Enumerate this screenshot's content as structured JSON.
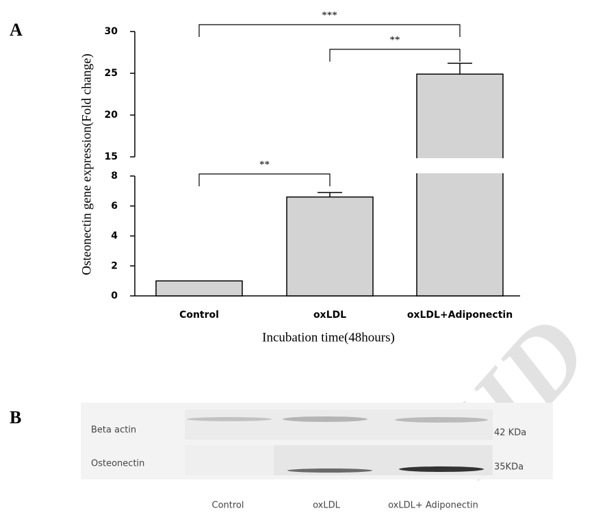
{
  "chart_data": {
    "type": "bar",
    "panel_label": "A",
    "y_label": "Osteonectin gene expression(Fold change)",
    "x_label": "Incubation time(48hours)",
    "categories": [
      "Control",
      "oxLDL",
      "oxLDL+Adiponectin"
    ],
    "values": [
      1,
      6.6,
      24.9
    ],
    "errors": [
      null,
      0.3,
      1.3
    ],
    "color": "#d3d3d3",
    "ylim": [
      0,
      30
    ],
    "ybreak": [
      8,
      15
    ],
    "yticks": [
      0,
      2,
      4,
      6,
      8,
      15,
      20,
      25,
      30
    ],
    "annotations": [
      "***",
      "**",
      "**"
    ]
  },
  "blot": {
    "panel_label": "B",
    "rows": [
      {
        "label": "Beta actin",
        "size": "42 KDa"
      },
      {
        "label": "Osteonectin",
        "size": "35KDa"
      }
    ],
    "lanes": [
      "Control",
      "oxLDL",
      "oxLDL+ Adiponectin"
    ]
  },
  "watermark": "SID"
}
